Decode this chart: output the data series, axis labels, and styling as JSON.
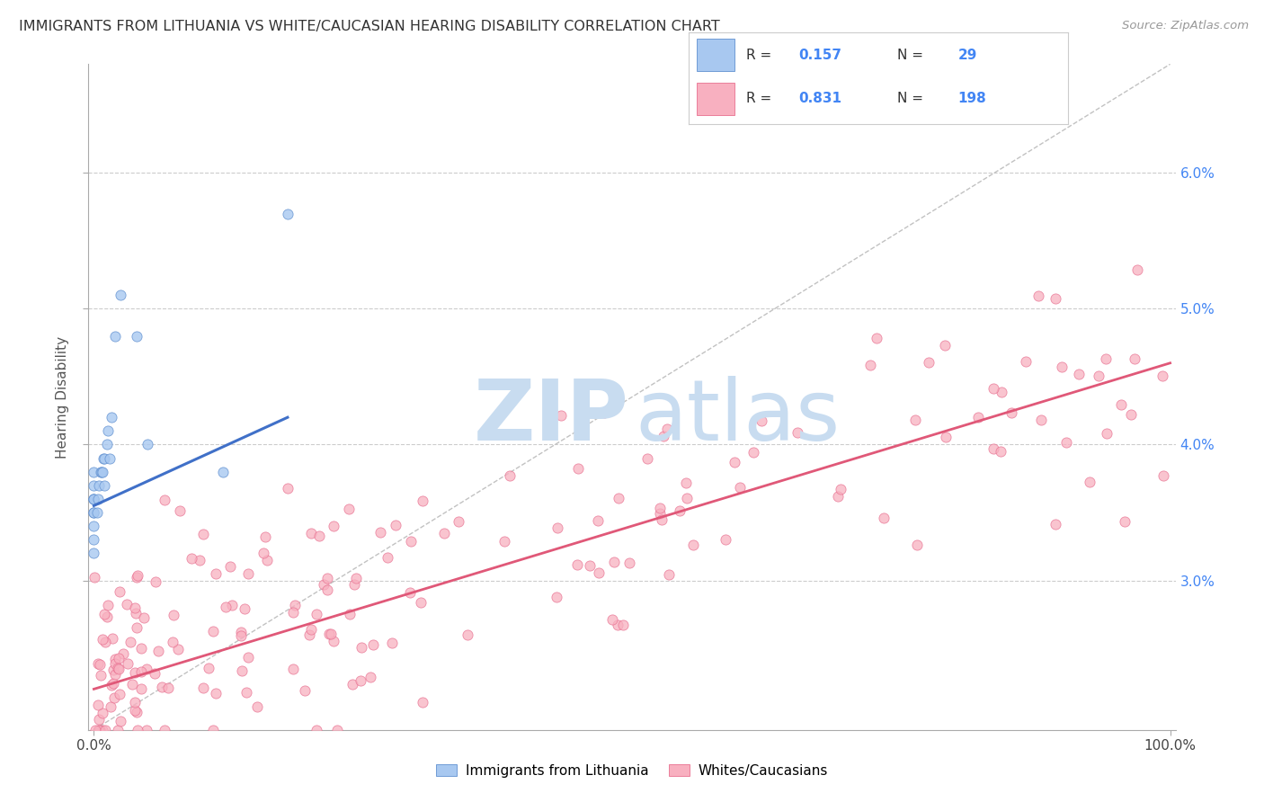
{
  "title": "IMMIGRANTS FROM LITHUANIA VS WHITE/CAUCASIAN HEARING DISABILITY CORRELATION CHART",
  "source": "Source: ZipAtlas.com",
  "ylabel_label": "Hearing Disability",
  "ylim": [
    0.019,
    0.068
  ],
  "xlim": [
    -0.005,
    1.005
  ],
  "yticks": [
    0.03,
    0.04,
    0.05,
    0.06
  ],
  "ytick_labels": [
    "3.0%",
    "4.0%",
    "5.0%",
    "6.0%"
  ],
  "xticks": [
    0.0,
    1.0
  ],
  "xtick_labels": [
    "0.0%",
    "100.0%"
  ],
  "blue_color": "#A8C8F0",
  "blue_edge_color": "#6090D0",
  "blue_line_color": "#4070C8",
  "pink_color": "#F8B0C0",
  "pink_edge_color": "#E87090",
  "pink_line_color": "#E05878",
  "diag_color": "#BBBBBB",
  "grid_color": "#CCCCCC",
  "tick_color": "#4285F4",
  "watermark_zip_color": "#C8DCF0",
  "watermark_atlas_color": "#C8DCF0",
  "blue_line_x": [
    0.0,
    0.18
  ],
  "blue_line_y": [
    0.0355,
    0.042
  ],
  "pink_line_x": [
    0.0,
    1.0
  ],
  "pink_line_y": [
    0.022,
    0.046
  ],
  "legend_r1": "R = 0.157",
  "legend_n1": "N =  29",
  "legend_r2": "R = 0.831",
  "legend_n2": "N = 198",
  "bottom_label1": "Immigrants from Lithuania",
  "bottom_label2": "Whites/Caucasians"
}
